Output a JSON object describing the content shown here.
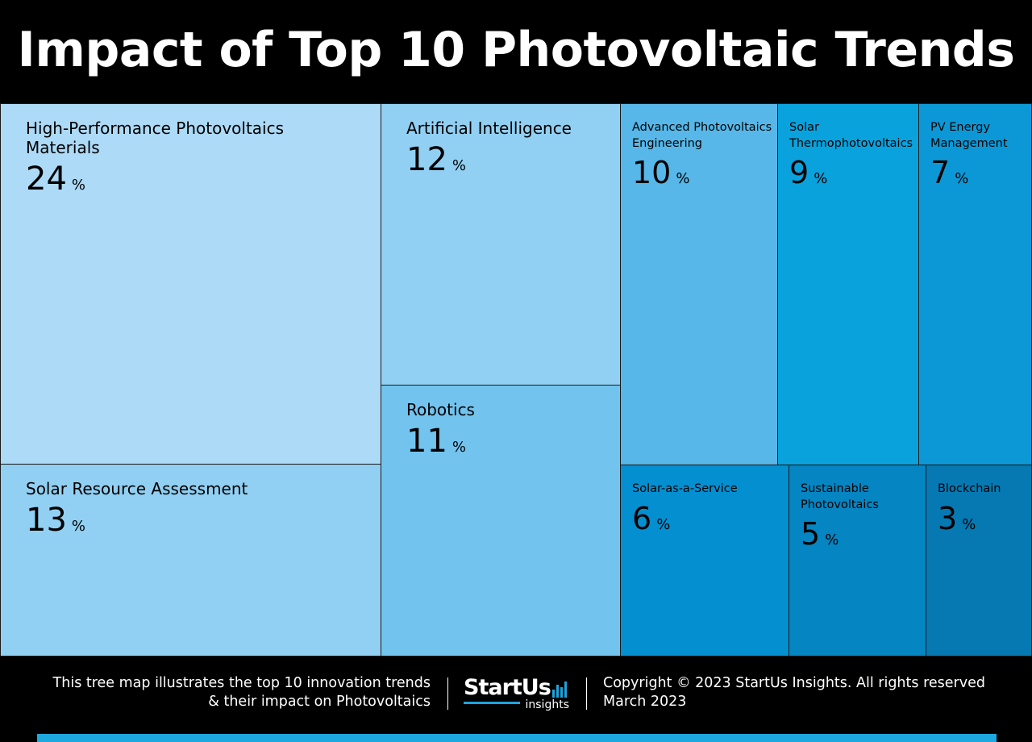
{
  "title": "Impact of Top 10 Photovoltaic Trends",
  "chart_data": {
    "type": "treemap",
    "title": "Impact of Top 10 Photovoltaic Trends",
    "unit": "%",
    "items": [
      {
        "name": "High-Performance Photovoltaics Materials",
        "value": 24,
        "color": "#acdaf7"
      },
      {
        "name": "Solar Resource Assessment",
        "value": 13,
        "color": "#91d0f3"
      },
      {
        "name": "Artificial Intelligence",
        "value": 12,
        "color": "#91d0f3"
      },
      {
        "name": "Robotics",
        "value": 11,
        "color": "#72c4ef"
      },
      {
        "name": "Advanced Photovoltaics Engineering",
        "value": 10,
        "color": "#56b7e8"
      },
      {
        "name": "Solar Thermophotovoltaics",
        "value": 9,
        "color": "#0aa2dd"
      },
      {
        "name": "PV Energy Management",
        "value": 7,
        "color": "#0c98d6"
      },
      {
        "name": "Solar-as-a-Service",
        "value": 6,
        "color": "#048fd0"
      },
      {
        "name": "Sustainable Photovoltaics",
        "value": 5,
        "color": "#0585c2"
      },
      {
        "name": "Blockchain",
        "value": 3,
        "color": "#0679b2"
      }
    ]
  },
  "footer": {
    "description_line1": "This tree map illustrates the top 10 innovation trends",
    "description_line2": "& their impact on Photovoltaics",
    "logo_main": "StartUs",
    "logo_sub": "insights",
    "copyright": "Copyright © 2023 StartUs Insights. All rights reserved",
    "date": "March 2023"
  },
  "colors": {
    "background": "#000000",
    "accent": "#1ea8e0"
  }
}
